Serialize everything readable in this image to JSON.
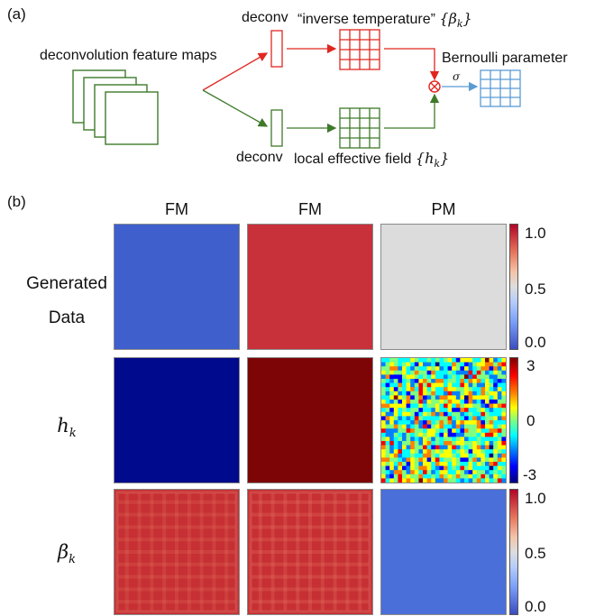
{
  "panel_a": {
    "letter": "(a)",
    "feature_maps_label": "deconvolution feature maps",
    "deconv_top": "deconv",
    "deconv_bottom": "deconv",
    "inverse_temperature": "“inverse temperature”",
    "inverse_temperature_symbol": "{β",
    "inverse_temperature_sub": "k",
    "inverse_temperature_close": "}",
    "local_field": "local effective field",
    "local_field_symbol": "{h",
    "local_field_sub": "k",
    "local_field_close": "}",
    "sigma": "σ",
    "bernoulli": "Bernoulli parameter",
    "colors": {
      "red": "#e0261f",
      "green": "#3e7a2a",
      "blue": "#5a9bd5"
    }
  },
  "panel_b": {
    "letter": "(b)",
    "columns": [
      "FM",
      "FM",
      "PM"
    ],
    "rows": [
      {
        "label_line1": "Generated",
        "label_line2": "Data"
      },
      {
        "symbol": "h",
        "sub": "k"
      },
      {
        "symbol": "β",
        "sub": "k"
      }
    ],
    "colorbars": [
      {
        "ticks": [
          "1.0",
          "0.5",
          "0.0"
        ],
        "map": "coolwarm"
      },
      {
        "ticks": [
          "3",
          "0",
          "-3"
        ],
        "map": "jet"
      },
      {
        "ticks": [
          "1.0",
          "0.5",
          "0.0"
        ],
        "map": "coolwarm"
      }
    ],
    "tile_colors": {
      "blue_uniform": "#3e5fcc",
      "red_uniform": "#c8303a",
      "gray_uniform": "#dcdcdc",
      "dark_blue": "#000a8c",
      "dark_red": "#7d0505",
      "beta_red": "#c62f33",
      "beta_blue": "#4a6fd9"
    }
  }
}
